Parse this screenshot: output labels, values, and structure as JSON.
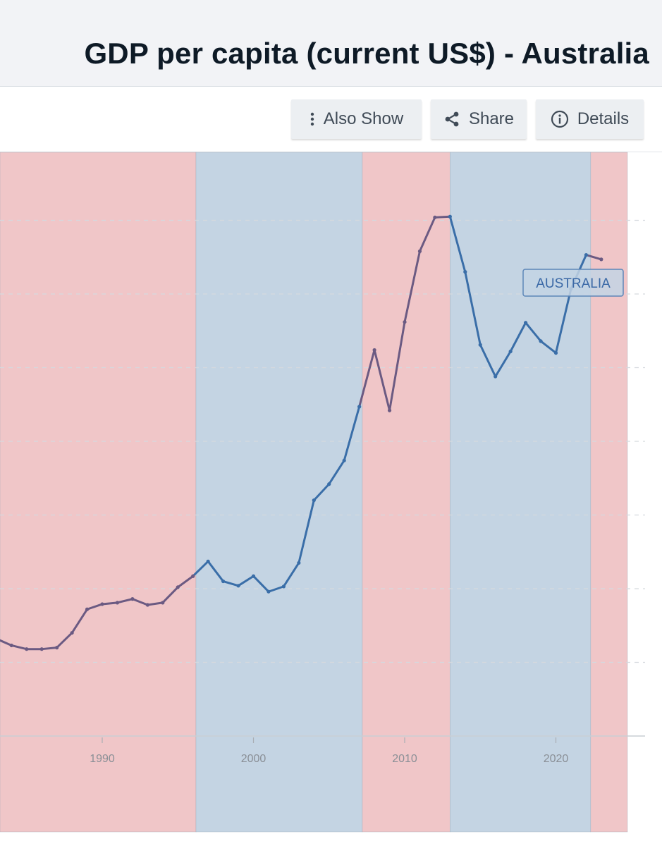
{
  "header": {
    "title": "GDP per capita (current US$) - Australia"
  },
  "toolbar": {
    "also_show_label": "Also Show",
    "share_label": "Share",
    "details_label": "Details"
  },
  "icons": {
    "also_show": "vertical-dots-icon",
    "share": "share-icon",
    "details": "info-icon"
  },
  "colors": {
    "line": "#3a6ea8",
    "line_in_red_band": "#6b5a82",
    "red_band": "#f0c6c8",
    "blue_band": "#c4d4e3",
    "label_fill": "#c3d3e4",
    "label_border": "#5d86b8",
    "grid": "#d5d9de",
    "axis_text": "#8a8f96"
  },
  "chart_data": {
    "type": "line",
    "title": "GDP per capita (current US$) - Australia",
    "series": [
      {
        "name": "AUSTRALIA",
        "x": [
          1982,
          1983,
          1984,
          1985,
          1986,
          1987,
          1988,
          1989,
          1990,
          1991,
          1992,
          1993,
          1994,
          1995,
          1996,
          1997,
          1998,
          1999,
          2000,
          2001,
          2002,
          2003,
          2004,
          2005,
          2006,
          2007,
          2008,
          2009,
          2010,
          2011,
          2012,
          2013,
          2014,
          2015,
          2016,
          2017,
          2018,
          2019,
          2020,
          2021,
          2022,
          2023
        ],
        "values": [
          12800,
          13200,
          12300,
          11800,
          11800,
          12000,
          14000,
          17200,
          17900,
          18100,
          18600,
          17800,
          18100,
          20200,
          21700,
          23700,
          21000,
          20400,
          21700,
          19600,
          20300,
          23500,
          32000,
          34200,
          37400,
          44700,
          52400,
          44200,
          56200,
          65800,
          70400,
          70500,
          63000,
          53100,
          48800,
          52200,
          56100,
          53600,
          52000,
          60700,
          65300,
          64700
        ]
      }
    ],
    "x_ticks": [
      1990,
      2000,
      2010,
      2020
    ],
    "xlim": [
      1982,
      2025
    ],
    "ylim": [
      0,
      80000
    ],
    "gridlines_y": [
      10000,
      20000,
      30000,
      40000,
      50000,
      60000,
      70000
    ],
    "grid": true,
    "series_label": "AUSTRALIA",
    "background_bands": [
      {
        "start": 1982,
        "end": 1996.2,
        "color": "red"
      },
      {
        "start": 1996.2,
        "end": 2007.2,
        "color": "blue"
      },
      {
        "start": 2007.2,
        "end": 2013.0,
        "color": "red"
      },
      {
        "start": 2013.0,
        "end": 2022.3,
        "color": "blue"
      },
      {
        "start": 2022.3,
        "end": 2025.0,
        "color": "red"
      }
    ]
  }
}
